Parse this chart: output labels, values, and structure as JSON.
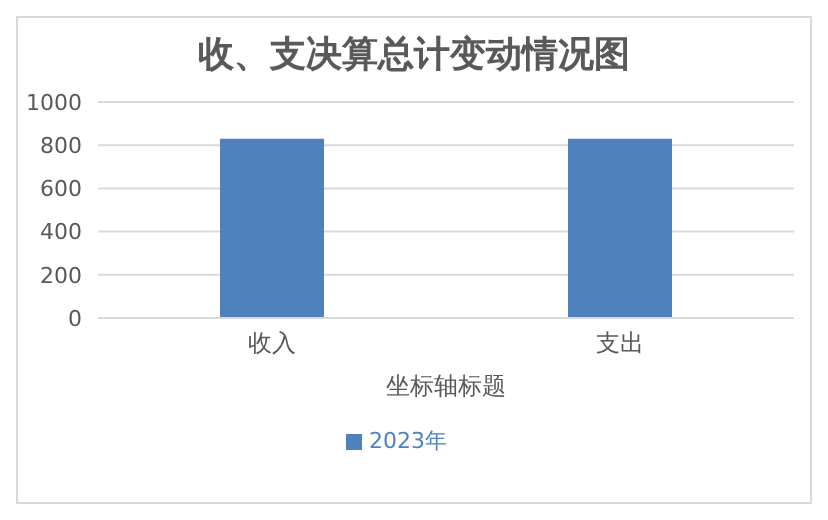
{
  "chart_data": {
    "type": "bar",
    "title": "收、支决算总计变动情况图",
    "xlabel": "坐标轴标题",
    "categories": [
      "收入",
      "支出"
    ],
    "series": [
      {
        "name": "2023年",
        "color": "#4f81bd",
        "values": [
          830,
          830
        ]
      }
    ],
    "ylim": [
      0,
      1000
    ],
    "yticks": [
      0,
      200,
      400,
      600,
      800,
      1000
    ],
    "grid": "y",
    "legend": "bottom"
  }
}
